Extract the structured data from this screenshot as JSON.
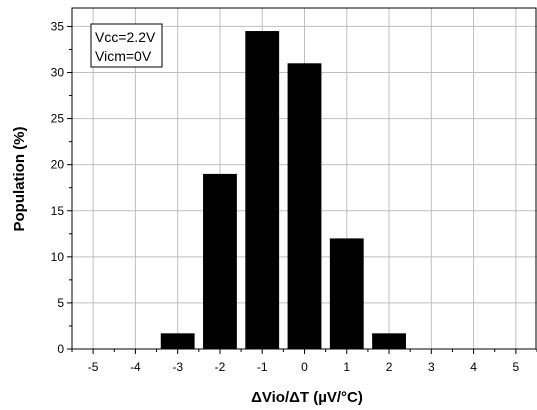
{
  "chart_data": {
    "type": "bar",
    "title": "",
    "xlabel": "ΔVio/ΔT (µV/°C)",
    "ylabel": "Population (%)",
    "xlim": [
      -5.5,
      5.5
    ],
    "ylim": [
      0,
      37
    ],
    "xticks": [
      -5,
      -4,
      -3,
      -2,
      -1,
      0,
      1,
      2,
      3,
      4,
      5
    ],
    "yticks": [
      0,
      5,
      10,
      15,
      20,
      25,
      30,
      35
    ],
    "bar_width": 0.8,
    "grid": true,
    "categories": [
      -3,
      -2,
      -1,
      0,
      1,
      2
    ],
    "values": [
      1.7,
      19,
      34.5,
      31,
      12,
      1.7
    ],
    "annotations": [
      "Vcc=2.2V",
      "Vicm=0V"
    ],
    "annotation_position": "top-left",
    "colors": {
      "bar": "#000000",
      "grid": "#bfbfbf",
      "axis": "#000000",
      "background": "#ffffff"
    }
  }
}
